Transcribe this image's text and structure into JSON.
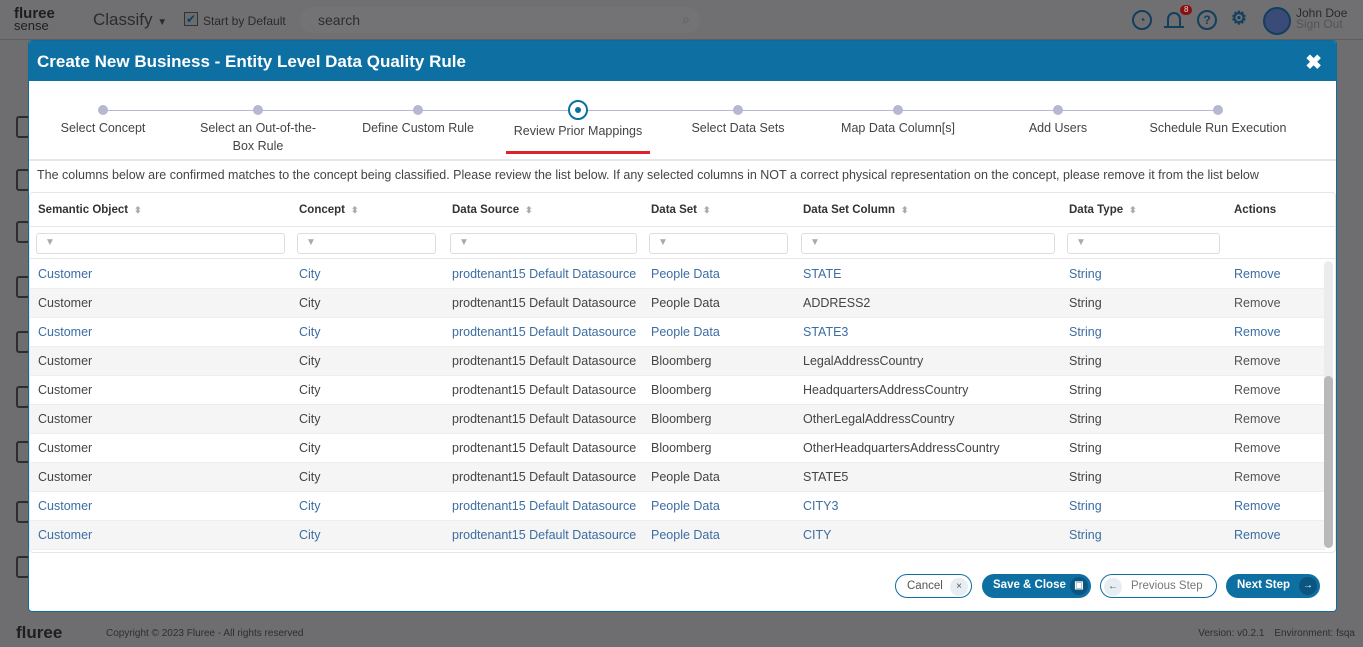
{
  "header": {
    "logo_top": "fluree",
    "logo_bottom": "sense",
    "app_name": "Classify",
    "start_default_label": "Start by Default",
    "search_placeholder": "search",
    "notification_count": "8",
    "user_name": "John Doe",
    "sign_out": "Sign Out"
  },
  "modal": {
    "title": "Create New Business - Entity Level Data Quality Rule",
    "close": "✖",
    "steps": [
      {
        "label": "Select Concept"
      },
      {
        "label": "Select an Out-of-the-Box Rule"
      },
      {
        "label": "Define Custom Rule"
      },
      {
        "label": "Review Prior Mappings",
        "active": true
      },
      {
        "label": "Select Data Sets"
      },
      {
        "label": "Map Data Column[s]"
      },
      {
        "label": "Add Users"
      },
      {
        "label": "Schedule Run Execution"
      }
    ],
    "info": "The columns below are confirmed matches to the concept being classified. Please review the list below. If any selected columns in NOT a correct physical representation on the concept, please remove it from the list below",
    "columns": [
      "Semantic Object",
      "Concept",
      "Data Source",
      "Data Set",
      "Data Set Column",
      "Data Type",
      "Actions"
    ],
    "rows": [
      [
        "Customer",
        "City",
        "prodtenant15 Default Datasource",
        "People Data",
        "STATE",
        "String",
        "Remove"
      ],
      [
        "Customer",
        "City",
        "prodtenant15 Default Datasource",
        "People Data",
        "ADDRESS2",
        "String",
        "Remove"
      ],
      [
        "Customer",
        "City",
        "prodtenant15 Default Datasource",
        "People Data",
        "STATE3",
        "String",
        "Remove"
      ],
      [
        "Customer",
        "City",
        "prodtenant15 Default Datasource",
        "Bloomberg",
        "LegalAddressCountry",
        "String",
        "Remove"
      ],
      [
        "Customer",
        "City",
        "prodtenant15 Default Datasource",
        "Bloomberg",
        "HeadquartersAddressCountry",
        "String",
        "Remove"
      ],
      [
        "Customer",
        "City",
        "prodtenant15 Default Datasource",
        "Bloomberg",
        "OtherLegalAddressCountry",
        "String",
        "Remove"
      ],
      [
        "Customer",
        "City",
        "prodtenant15 Default Datasource",
        "Bloomberg",
        "OtherHeadquartersAddressCountry",
        "String",
        "Remove"
      ],
      [
        "Customer",
        "City",
        "prodtenant15 Default Datasource",
        "People Data",
        "STATE5",
        "String",
        "Remove"
      ],
      [
        "Customer",
        "City",
        "prodtenant15 Default Datasource",
        "People Data",
        "CITY3",
        "String",
        "Remove"
      ],
      [
        "Customer",
        "City",
        "prodtenant15 Default Datasource",
        "People Data",
        "CITY",
        "String",
        "Remove"
      ]
    ],
    "highlighted_rows": [
      0,
      2,
      8,
      9
    ],
    "buttons": {
      "cancel": "Cancel",
      "save": "Save & Close",
      "previous": "Previous Step",
      "next": "Next Step"
    }
  },
  "footer": {
    "logo": "fluree",
    "copyright": "Copyright © 2023 Fluree - All rights reserved",
    "version": "Version: v0.2.1",
    "environment": "Environment: fsqa"
  }
}
